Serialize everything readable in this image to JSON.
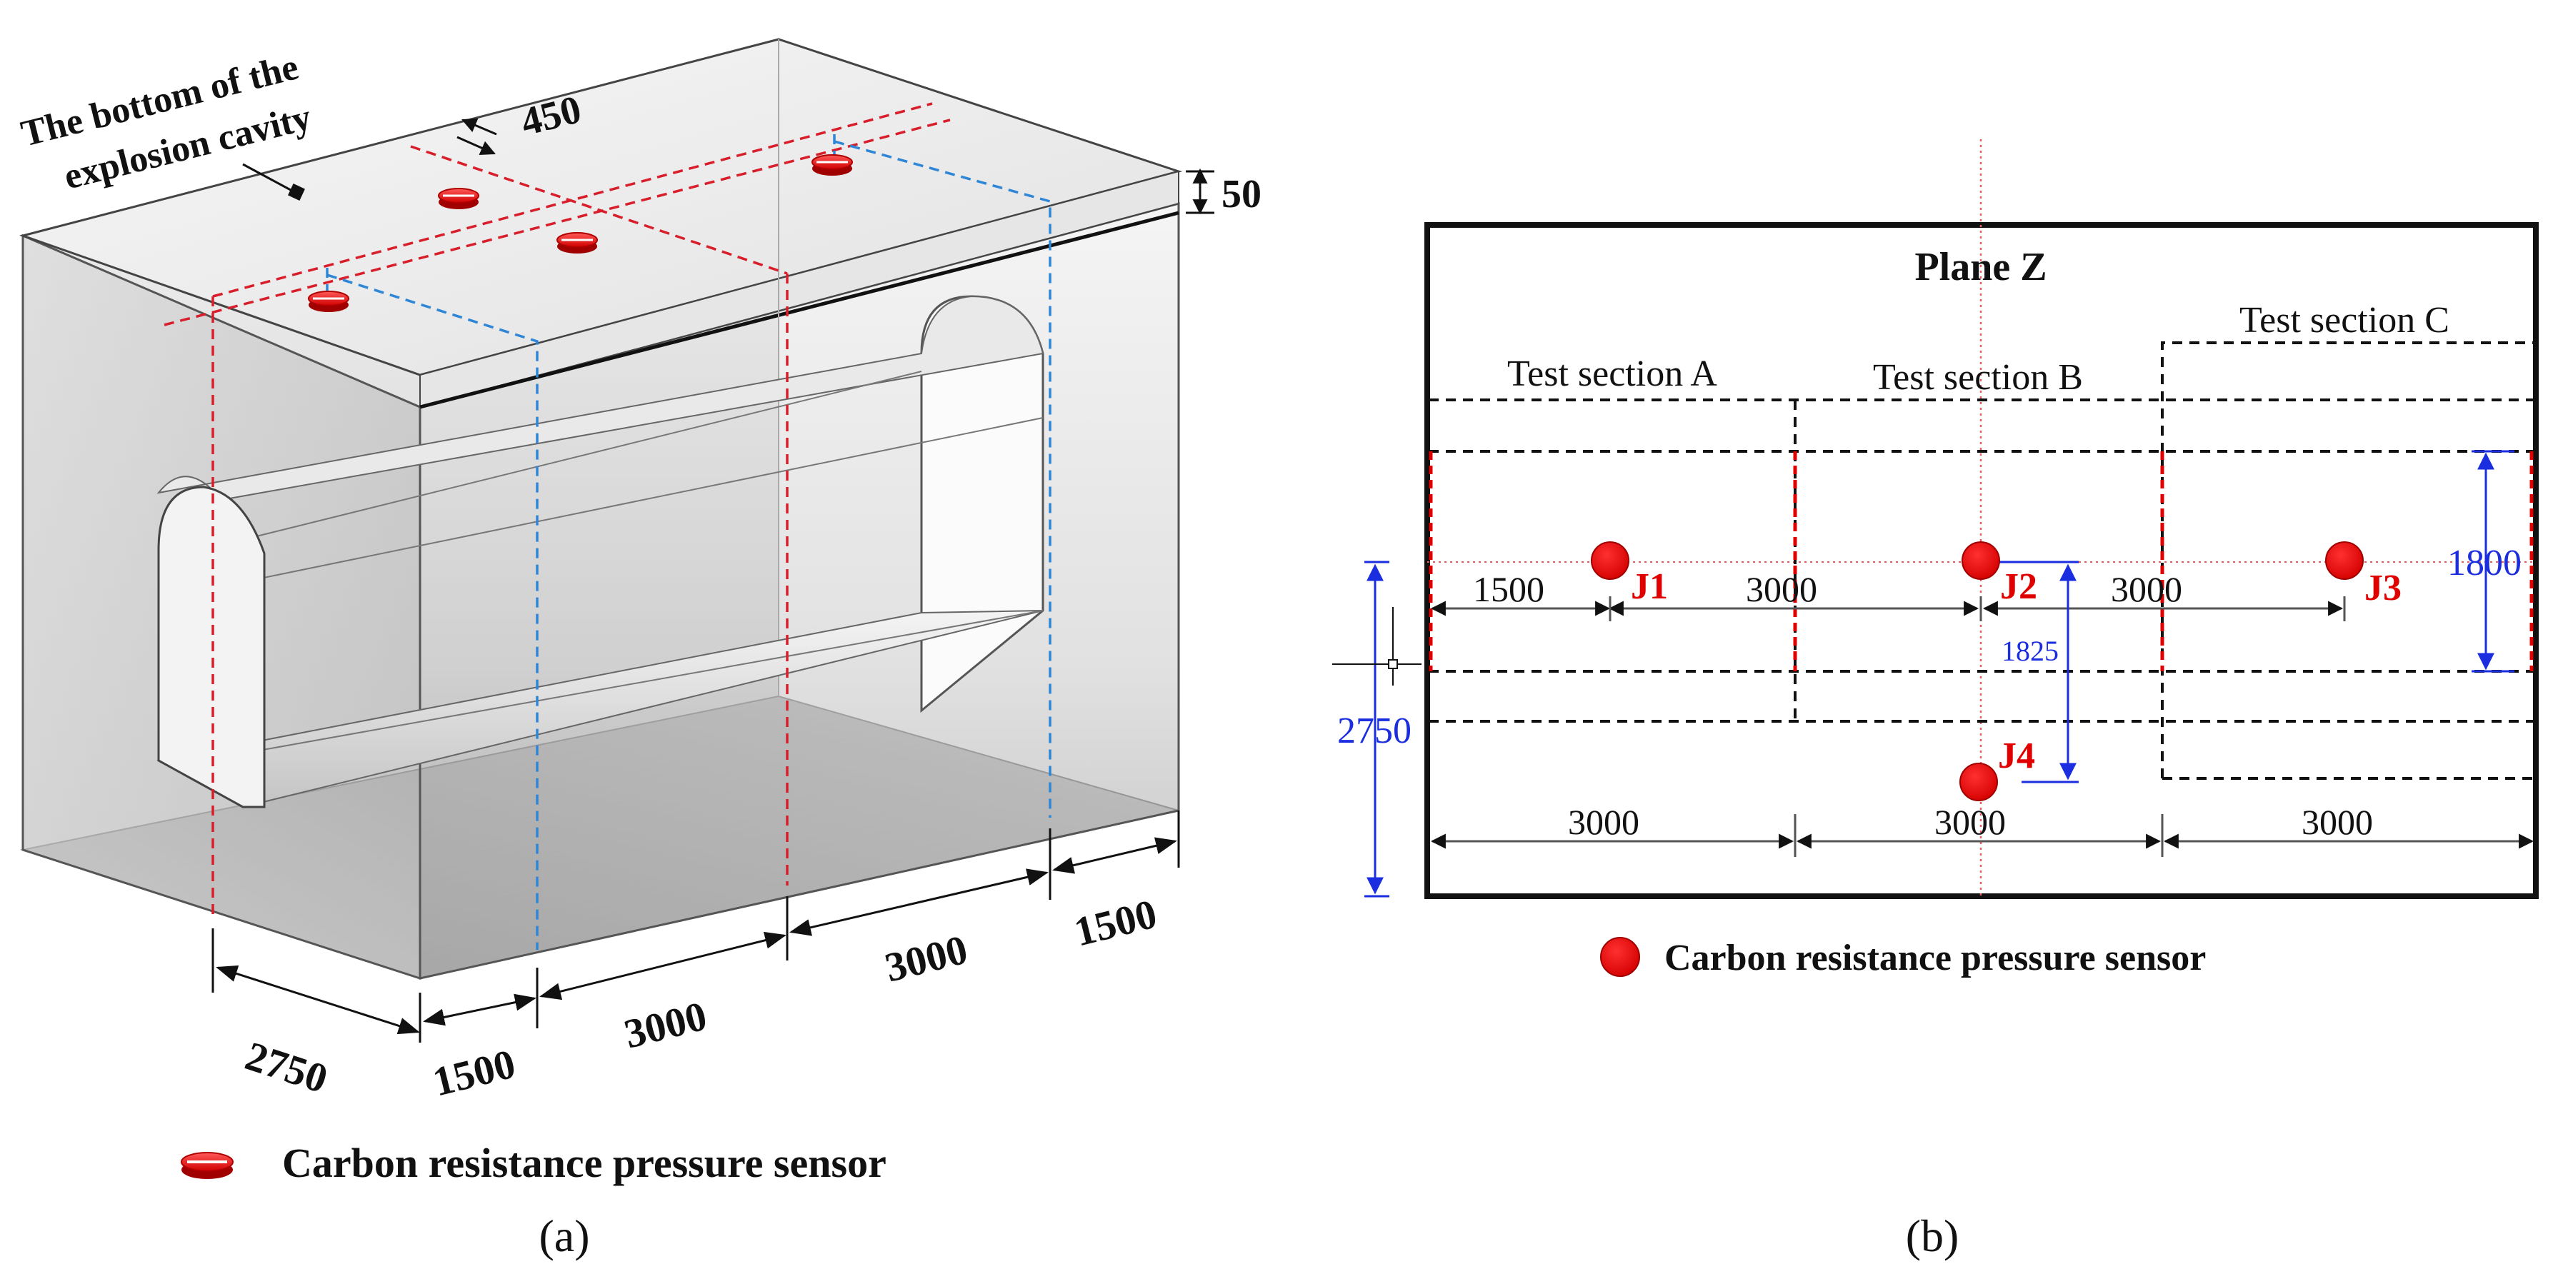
{
  "colors": {
    "sensor_red": "#e8141e",
    "red_dash": "#d81e2a",
    "blue_dash": "#2f86d6",
    "dim_blue": "#1a2ee0",
    "label_red": "#e00000",
    "black": "#111111"
  },
  "panel_a": {
    "caption": "(a)",
    "top_label_line1": "The bottom of the",
    "top_label_line2": "explosion cavity",
    "dimensions": {
      "spacing_450": "450",
      "thickness_50": "50",
      "depth_2750": "2750",
      "length_1500_left": "1500",
      "length_3000_mid_left": "3000",
      "length_3000_mid_right": "3000",
      "length_1500_right": "1500"
    },
    "legend_label": "Carbon resistance pressure sensor"
  },
  "panel_b": {
    "caption": "(b)",
    "plane_title": "Plane Z",
    "sections": [
      "Test section A",
      "Test section B",
      "Test section C"
    ],
    "sensors": [
      {
        "label": "J1"
      },
      {
        "label": "J2"
      },
      {
        "label": "J3"
      },
      {
        "label": "J4"
      }
    ],
    "dimensions": {
      "d_1500": "1500",
      "d_3000_j1j2": "3000",
      "d_3000_j2j3": "3000",
      "d_1825": "1825",
      "d_1800": "1800",
      "d_2750": "2750",
      "bottom_3000_a": "3000",
      "bottom_3000_b": "3000",
      "bottom_3000_c": "3000"
    },
    "legend_label": "Carbon resistance pressure sensor"
  }
}
